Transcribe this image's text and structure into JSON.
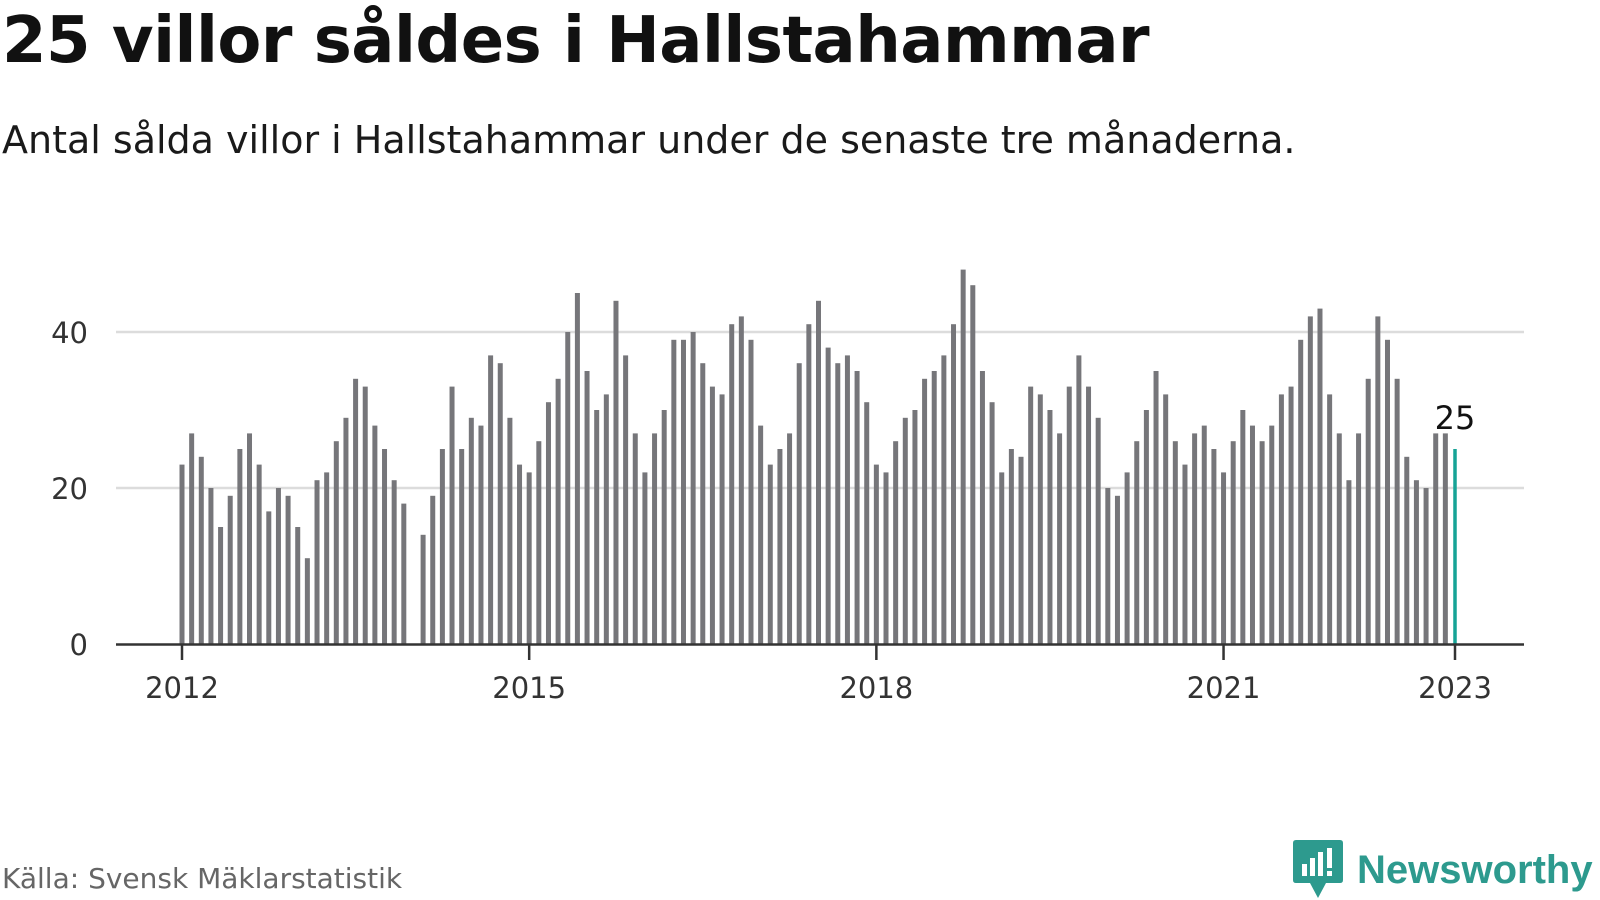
{
  "header": {
    "title": "25 villor såldes i Hallstahammar",
    "subtitle": "Antal sålda villor i Hallstahammar under de senaste tre månaderna."
  },
  "footer": {
    "source": "Källa: Svensk Mäklarstatistik",
    "brand": "Newsworthy"
  },
  "colors": {
    "bar": "#76767a",
    "highlight": "#16a396",
    "grid": "#dcdcdc",
    "axis": "#333333",
    "brand": "#2d9a8e"
  },
  "chart_data": {
    "type": "bar",
    "start": "2012-01",
    "end": "2023-01",
    "x_tick_labels": [
      "2012",
      "2015",
      "2018",
      "2021",
      "2023"
    ],
    "y_ticks": [
      0,
      20,
      40
    ],
    "ylim": [
      0,
      48
    ],
    "grid": true,
    "values": [
      23,
      27,
      24,
      20,
      15,
      19,
      25,
      27,
      23,
      17,
      20,
      19,
      15,
      11,
      21,
      22,
      26,
      29,
      34,
      33,
      28,
      25,
      21,
      18,
      0,
      14,
      19,
      25,
      33,
      25,
      29,
      28,
      37,
      36,
      29,
      23,
      22,
      26,
      31,
      34,
      40,
      45,
      35,
      30,
      32,
      44,
      37,
      27,
      22,
      27,
      30,
      39,
      39,
      40,
      36,
      33,
      32,
      41,
      42,
      39,
      28,
      23,
      25,
      27,
      36,
      41,
      44,
      38,
      36,
      37,
      35,
      31,
      23,
      22,
      26,
      29,
      30,
      34,
      35,
      37,
      41,
      48,
      46,
      35,
      31,
      22,
      25,
      24,
      33,
      32,
      30,
      27,
      33,
      37,
      33,
      29,
      20,
      19,
      22,
      26,
      30,
      35,
      32,
      26,
      23,
      27,
      28,
      25,
      22,
      26,
      30,
      28,
      26,
      28,
      32,
      33,
      39,
      42,
      43,
      32,
      27,
      21,
      27,
      34,
      42,
      39,
      34,
      24,
      21,
      20,
      27,
      27,
      25
    ],
    "highlight": {
      "label": "25",
      "value": 25
    }
  }
}
